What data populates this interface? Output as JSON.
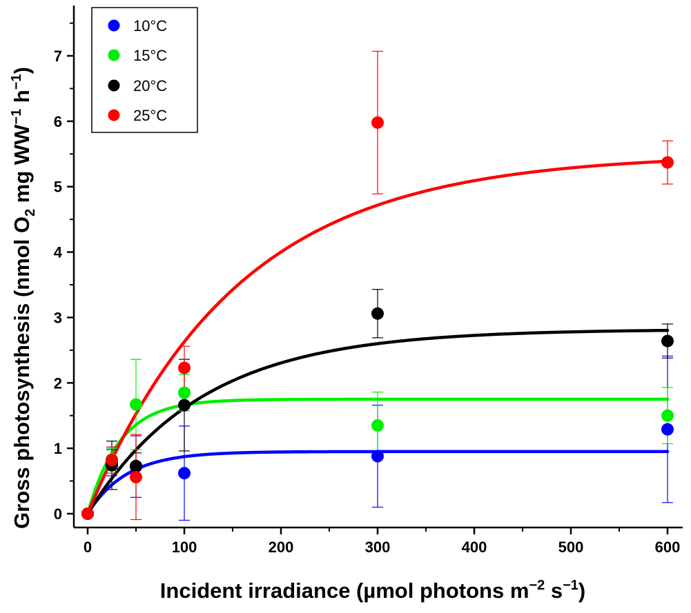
{
  "chart_data": {
    "type": "scatter",
    "xlabel": {
      "prefix": "Incident irradiance (µmol photons m",
      "sup1": "−2",
      "middle": " s",
      "sup2": "−1",
      "suffix": ")"
    },
    "ylabel": {
      "prefix": "Gross photosynthesis (nmol O",
      "sub": "2",
      "middle1": " mg WW",
      "sup1": "−1",
      "middle2": " h",
      "sup2": "−1",
      "suffix": ")"
    },
    "xlim": [
      -15,
      615
    ],
    "ylim": [
      -0.25,
      7.8
    ],
    "xticks": [
      0,
      100,
      200,
      300,
      400,
      500,
      600
    ],
    "yticks": [
      0,
      1,
      2,
      3,
      4,
      5,
      6,
      7
    ],
    "grid": false,
    "legend_position": "top-left",
    "series": [
      {
        "name": "10°C",
        "color": "#0000ff",
        "x": [
          0,
          25,
          50,
          100,
          300,
          600
        ],
        "y": [
          0,
          0.78,
          0.72,
          0.62,
          0.88,
          1.29
        ],
        "err": [
          0,
          0.2,
          0.47,
          0.72,
          0.78,
          1.12
        ],
        "fit": {
          "pmax": 0.95,
          "k": 0.025
        }
      },
      {
        "name": "15°C",
        "color": "#00ee00",
        "x": [
          0,
          25,
          50,
          100,
          300,
          600
        ],
        "y": [
          0,
          0.83,
          1.67,
          1.85,
          1.35,
          1.5
        ],
        "err": [
          0,
          0.17,
          0.69,
          0.28,
          0.51,
          0.43
        ],
        "fit": {
          "pmax": 1.75,
          "k": 0.03
        }
      },
      {
        "name": "20°C",
        "color": "#000000",
        "x": [
          0,
          25,
          50,
          100,
          300,
          600
        ],
        "y": [
          0,
          0.74,
          0.73,
          1.66,
          3.06,
          2.64
        ],
        "err": [
          0,
          0.37,
          0.2,
          0.7,
          0.37,
          0.26
        ],
        "fit": {
          "pmax": 2.82,
          "k": 0.0085
        }
      },
      {
        "name": "25°C",
        "color": "#ff0000",
        "x": [
          0,
          25,
          50,
          100,
          300,
          600
        ],
        "y": [
          0,
          0.82,
          0.56,
          2.23,
          5.98,
          5.37
        ],
        "err": [
          0,
          0.2,
          0.65,
          0.33,
          1.09,
          0.33
        ],
        "fit": {
          "pmax": 5.5,
          "k": 0.0065
        }
      }
    ]
  }
}
